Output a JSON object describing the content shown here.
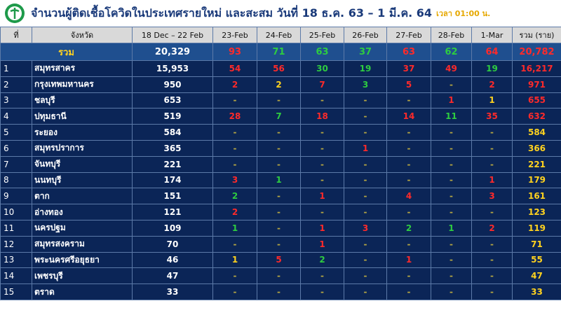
{
  "header": {
    "title": "จำนวนผู้ติดเชื้อโควิดในประเทศรายใหม่ และสะสม วันที่ 18 ธ.ค. 63 – 1 มี.ค. 64",
    "time": "เวลา 01:00 น."
  },
  "table": {
    "columns": [
      "ที่",
      "จังหวัด",
      "18 Dec – 22 Feb",
      "23-Feb",
      "24-Feb",
      "25-Feb",
      "26-Feb",
      "27-Feb",
      "28-Feb",
      "1-Mar",
      "รวม (ราย)"
    ],
    "total": {
      "label": "รวม",
      "base": "20,329",
      "daily": [
        "93",
        "71",
        "63",
        "37",
        "63",
        "62",
        "64"
      ],
      "daily_colors": [
        "#ff2a2a",
        "#2ecc40",
        "#2ecc40",
        "#2ecc40",
        "#ff2a2a",
        "#2ecc40",
        "#ff2a2a"
      ],
      "sum": "20,782",
      "sum_color": "#ff2a2a"
    },
    "rows": [
      {
        "no": "1",
        "province": "สมุทรสาคร",
        "base": "15,953",
        "daily": [
          "54",
          "56",
          "30",
          "19",
          "37",
          "49",
          "19"
        ],
        "daily_colors": [
          "#ff2a2a",
          "#ff2a2a",
          "#2ecc40",
          "#2ecc40",
          "#ff2a2a",
          "#ff2a2a",
          "#2ecc40"
        ],
        "sum": "16,217",
        "sum_color": "#ff2a2a"
      },
      {
        "no": "2",
        "province": "กรุงเทพมหานคร",
        "base": "950",
        "daily": [
          "2",
          "2",
          "7",
          "3",
          "5",
          "-",
          "2"
        ],
        "daily_colors": [
          "#ff2a2a",
          "#ffd21f",
          "#ff2a2a",
          "#2ecc40",
          "#ff2a2a",
          "#b5a642",
          "#ff2a2a"
        ],
        "sum": "971",
        "sum_color": "#ff2a2a"
      },
      {
        "no": "3",
        "province": "ชลบุรี",
        "base": "653",
        "daily": [
          "-",
          "-",
          "-",
          "-",
          "-",
          "1",
          "1"
        ],
        "daily_colors": [
          "#b5a642",
          "#b5a642",
          "#b5a642",
          "#b5a642",
          "#b5a642",
          "#ff2a2a",
          "#ffd21f"
        ],
        "sum": "655",
        "sum_color": "#ff2a2a"
      },
      {
        "no": "4",
        "province": "ปทุมธานี",
        "base": "519",
        "daily": [
          "28",
          "7",
          "18",
          "-",
          "14",
          "11",
          "35"
        ],
        "daily_colors": [
          "#ff2a2a",
          "#2ecc40",
          "#ff2a2a",
          "#b5a642",
          "#ff2a2a",
          "#2ecc40",
          "#ff2a2a"
        ],
        "sum": "632",
        "sum_color": "#ff2a2a"
      },
      {
        "no": "5",
        "province": "ระยอง",
        "base": "584",
        "daily": [
          "-",
          "-",
          "-",
          "-",
          "-",
          "-",
          "-"
        ],
        "daily_colors": [
          "#b5a642",
          "#b5a642",
          "#b5a642",
          "#b5a642",
          "#b5a642",
          "#b5a642",
          "#b5a642"
        ],
        "sum": "584",
        "sum_color": "#ffd21f"
      },
      {
        "no": "6",
        "province": "สมุทรปราการ",
        "base": "365",
        "daily": [
          "-",
          "-",
          "-",
          "1",
          "-",
          "-",
          "-"
        ],
        "daily_colors": [
          "#b5a642",
          "#b5a642",
          "#b5a642",
          "#ff2a2a",
          "#b5a642",
          "#b5a642",
          "#b5a642"
        ],
        "sum": "366",
        "sum_color": "#ffd21f"
      },
      {
        "no": "7",
        "province": "จันทบุรี",
        "base": "221",
        "daily": [
          "-",
          "-",
          "-",
          "-",
          "-",
          "-",
          "-"
        ],
        "daily_colors": [
          "#b5a642",
          "#b5a642",
          "#b5a642",
          "#b5a642",
          "#b5a642",
          "#b5a642",
          "#b5a642"
        ],
        "sum": "221",
        "sum_color": "#ffd21f"
      },
      {
        "no": "8",
        "province": "นนทบุรี",
        "base": "174",
        "daily": [
          "3",
          "1",
          "-",
          "-",
          "-",
          "-",
          "1"
        ],
        "daily_colors": [
          "#ff2a2a",
          "#2ecc40",
          "#b5a642",
          "#b5a642",
          "#b5a642",
          "#b5a642",
          "#ff2a2a"
        ],
        "sum": "179",
        "sum_color": "#ffd21f"
      },
      {
        "no": "9",
        "province": "ตาก",
        "base": "151",
        "daily": [
          "2",
          "-",
          "1",
          "-",
          "4",
          "-",
          "3"
        ],
        "daily_colors": [
          "#2ecc40",
          "#b5a642",
          "#ff2a2a",
          "#b5a642",
          "#ff2a2a",
          "#b5a642",
          "#ff2a2a"
        ],
        "sum": "161",
        "sum_color": "#ffd21f"
      },
      {
        "no": "10",
        "province": "อ่างทอง",
        "base": "121",
        "daily": [
          "2",
          "-",
          "-",
          "-",
          "-",
          "-",
          "-"
        ],
        "daily_colors": [
          "#ff2a2a",
          "#b5a642",
          "#b5a642",
          "#b5a642",
          "#b5a642",
          "#b5a642",
          "#b5a642"
        ],
        "sum": "123",
        "sum_color": "#ffd21f"
      },
      {
        "no": "11",
        "province": "นครปฐม",
        "base": "109",
        "daily": [
          "1",
          "-",
          "1",
          "3",
          "2",
          "1",
          "2"
        ],
        "daily_colors": [
          "#2ecc40",
          "#b5a642",
          "#ff2a2a",
          "#ff2a2a",
          "#2ecc40",
          "#2ecc40",
          "#ff2a2a"
        ],
        "sum": "119",
        "sum_color": "#ffd21f"
      },
      {
        "no": "12",
        "province": "สมุทรสงคราม",
        "base": "70",
        "daily": [
          "-",
          "-",
          "1",
          "-",
          "-",
          "-",
          "-"
        ],
        "daily_colors": [
          "#b5a642",
          "#b5a642",
          "#ff2a2a",
          "#b5a642",
          "#b5a642",
          "#b5a642",
          "#b5a642"
        ],
        "sum": "71",
        "sum_color": "#ffd21f"
      },
      {
        "no": "13",
        "province": "พระนครศรีอยุธยา",
        "base": "46",
        "daily": [
          "1",
          "5",
          "2",
          "-",
          "1",
          "-",
          "-"
        ],
        "daily_colors": [
          "#ffd21f",
          "#ff2a2a",
          "#2ecc40",
          "#b5a642",
          "#ff2a2a",
          "#b5a642",
          "#b5a642"
        ],
        "sum": "55",
        "sum_color": "#ffd21f"
      },
      {
        "no": "14",
        "province": "เพชรบุรี",
        "base": "47",
        "daily": [
          "-",
          "-",
          "-",
          "-",
          "-",
          "-",
          "-"
        ],
        "daily_colors": [
          "#b5a642",
          "#b5a642",
          "#b5a642",
          "#b5a642",
          "#b5a642",
          "#b5a642",
          "#b5a642"
        ],
        "sum": "47",
        "sum_color": "#ffd21f"
      },
      {
        "no": "15",
        "province": "ตราด",
        "base": "33",
        "daily": [
          "-",
          "-",
          "-",
          "-",
          "-",
          "-",
          "-"
        ],
        "daily_colors": [
          "#b5a642",
          "#b5a642",
          "#b5a642",
          "#b5a642",
          "#b5a642",
          "#b5a642",
          "#b5a642"
        ],
        "sum": "33",
        "sum_color": "#ffd21f"
      }
    ]
  }
}
